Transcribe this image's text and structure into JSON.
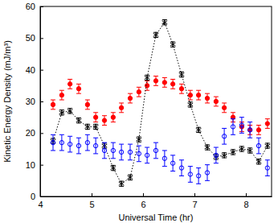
{
  "chart_data": {
    "type": "scatter",
    "x_label": "Universal Time (hr)",
    "y_label": "Kinetic Energy Density (mJ/m³)",
    "x": [
      4.25,
      4.42,
      4.58,
      4.75,
      4.92,
      5.08,
      5.25,
      5.42,
      5.58,
      5.75,
      5.92,
      6.08,
      6.25,
      6.42,
      6.58,
      6.75,
      6.92,
      7.08,
      7.25,
      7.42,
      7.58,
      7.75,
      7.92,
      8.08,
      8.25,
      8.42
    ],
    "series": [
      {
        "type": "scatter",
        "color": "#ff0000",
        "marker": "circle",
        "values": [
          29,
          32,
          35.5,
          34,
          29,
          25,
          24,
          25,
          28,
          31,
          33,
          35,
          36.5,
          36,
          35.5,
          34,
          32,
          32,
          31,
          30,
          28,
          25,
          22,
          21,
          21,
          23
        ],
        "errors": [
          1.5,
          1.5,
          1.5,
          1.5,
          1.5,
          1.5,
          1.5,
          1.5,
          1.5,
          1.5,
          1.5,
          1.5,
          1.5,
          1.5,
          1.5,
          1.5,
          1.5,
          1.5,
          1.5,
          1.5,
          1.5,
          1.5,
          1.5,
          1.5,
          1.5,
          1.5
        ]
      },
      {
        "type": "line",
        "color": "#000000",
        "marker": "asterisk",
        "line_style": "dotted",
        "values": [
          17.5,
          26.5,
          27,
          24,
          22,
          22,
          16,
          9,
          4,
          6,
          18,
          37.5,
          51,
          55,
          48,
          38.5,
          29,
          21,
          15.5,
          12.5,
          13,
          14,
          15,
          14.5,
          11,
          16
        ],
        "errors": [
          0.8,
          0.8,
          0.8,
          0.8,
          0.8,
          0.8,
          0.8,
          0.8,
          0.8,
          0.8,
          0.8,
          0.8,
          0.8,
          0.8,
          0.8,
          0.8,
          0.8,
          0.8,
          0.8,
          0.8,
          0.8,
          0.8,
          0.8,
          0.8,
          0.8,
          0.8
        ]
      },
      {
        "type": "scatter",
        "color": "#0000ff",
        "marker": "open-circle",
        "values": [
          17,
          17,
          16.5,
          16,
          17,
          16,
          14.5,
          14.5,
          14,
          14,
          13.5,
          13,
          14.5,
          12,
          10.5,
          9,
          7,
          6.5,
          7.5,
          13,
          19,
          22,
          22.5,
          21,
          16,
          9
        ],
        "errors": [
          2.5,
          2.5,
          2.5,
          2.5,
          2.5,
          2.5,
          2.5,
          2.5,
          2.5,
          2.5,
          2.5,
          2.5,
          2.5,
          2.5,
          2.5,
          2.5,
          2.5,
          2.5,
          2.5,
          2.5,
          2.5,
          2.5,
          2.5,
          2.5,
          2.5,
          2.5
        ]
      }
    ],
    "xlim": [
      4,
      8.5
    ],
    "xticks": [
      4,
      5,
      6,
      7,
      8
    ],
    "ylim": [
      0,
      60
    ],
    "yticks": [
      0,
      10,
      20,
      30,
      40,
      50,
      60
    ]
  }
}
